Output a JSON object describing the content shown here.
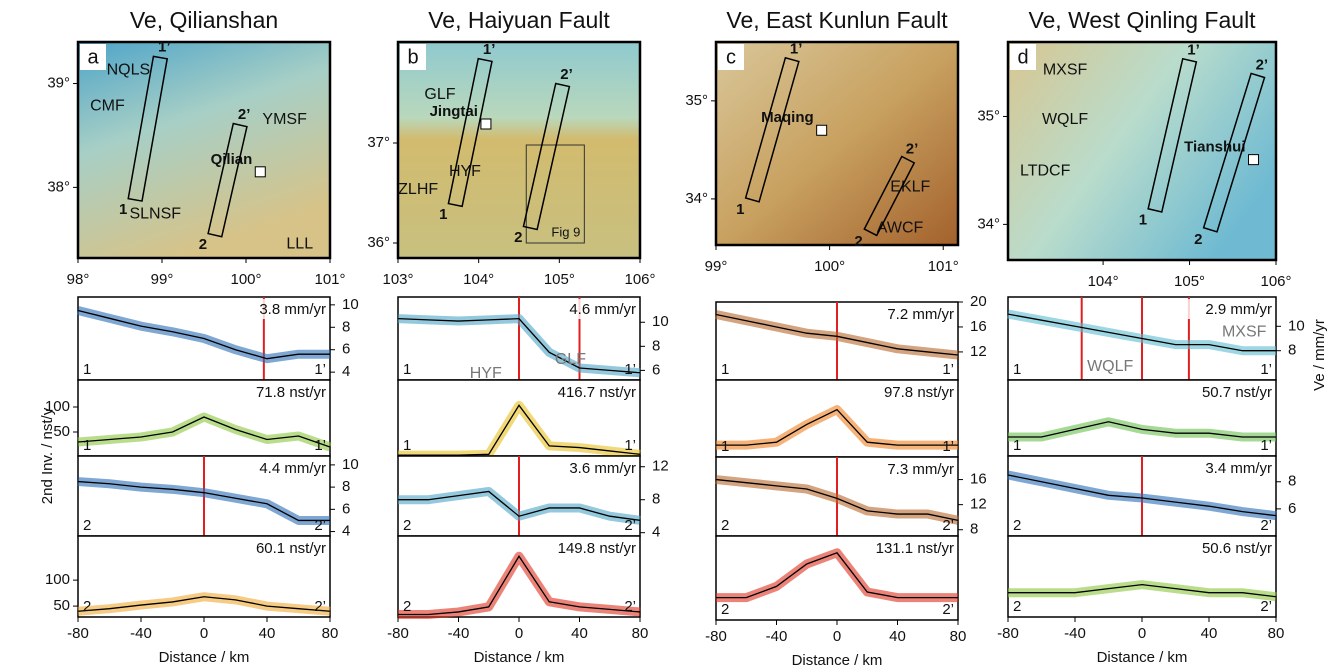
{
  "chart_data": [
    {
      "type": "map",
      "title": "Ve, Qilianshan",
      "panel": "a",
      "xlim": [
        98,
        101
      ],
      "ylim": [
        37.32,
        39.4
      ],
      "xticks": [
        {
          "value": 98,
          "label": "98°"
        },
        {
          "value": 99,
          "label": "99°"
        },
        {
          "value": 100,
          "label": "100°"
        },
        {
          "value": 101,
          "label": "101°"
        }
      ],
      "yticks": [
        {
          "value": 38,
          "label": "38°"
        },
        {
          "value": 39,
          "label": "39°"
        }
      ],
      "labels": [
        {
          "text": "NQLS",
          "lon": 98.6,
          "lat": 39.13
        },
        {
          "text": "CMF",
          "lon": 98.35,
          "lat": 38.78
        },
        {
          "text": "YMSF",
          "lon": 100.46,
          "lat": 38.65
        },
        {
          "text": "SLNSF",
          "lon": 98.92,
          "lat": 37.74
        },
        {
          "text": "LLL",
          "lon": 100.64,
          "lat": 37.45
        }
      ],
      "towns": [
        {
          "name": "Qilian",
          "lon": 100.17,
          "lat": 38.15
        }
      ],
      "profiles": [
        {
          "start": [
            98.68,
            37.88
          ],
          "end": [
            98.98,
            39.25
          ],
          "start_label": "1",
          "end_label": "1’"
        },
        {
          "start": [
            99.63,
            37.54
          ],
          "end": [
            99.93,
            38.6
          ],
          "start_label": "2",
          "end_label": "2’"
        }
      ]
    },
    {
      "type": "map",
      "title": "Ve, Haiyuan Fault",
      "panel": "b",
      "xlim": [
        103,
        106
      ],
      "ylim": [
        35.85,
        38.01
      ],
      "xticks": [
        {
          "value": 103,
          "label": "103°"
        },
        {
          "value": 104,
          "label": "104°"
        },
        {
          "value": 105,
          "label": "105°"
        },
        {
          "value": 106,
          "label": "106°"
        }
      ],
      "yticks": [
        {
          "value": 36,
          "label": "36°"
        },
        {
          "value": 37,
          "label": "37°"
        }
      ],
      "labels": [
        {
          "text": "GLF",
          "lon": 103.52,
          "lat": 37.48
        },
        {
          "text": "HYF",
          "lon": 103.83,
          "lat": 36.71
        },
        {
          "text": "ZLHF",
          "lon": 103.25,
          "lat": 36.53
        }
      ],
      "towns": [
        {
          "name": "Jingtai",
          "lon": 104.09,
          "lat": 37.19
        }
      ],
      "inset": {
        "label": "Fig 9",
        "lon": [
          104.59,
          105.31
        ],
        "lat": [
          36.0,
          36.98
        ]
      },
      "profiles": [
        {
          "start": [
            103.71,
            36.38
          ],
          "end": [
            104.08,
            37.83
          ],
          "start_label": "1",
          "end_label": "1’"
        },
        {
          "start": [
            104.64,
            36.15
          ],
          "end": [
            105.04,
            37.58
          ],
          "start_label": "2",
          "end_label": "2’"
        }
      ]
    },
    {
      "type": "map",
      "title": "Ve, East Kunlun Fault",
      "panel": "c",
      "xlim": [
        99,
        101.13
      ],
      "ylim": [
        33.53,
        35.6
      ],
      "xticks": [
        {
          "value": 99,
          "label": "99°"
        },
        {
          "value": 100,
          "label": "100°"
        },
        {
          "value": 101,
          "label": "101°"
        }
      ],
      "yticks": [
        {
          "value": 34,
          "label": "34°"
        },
        {
          "value": 35,
          "label": "35°"
        }
      ],
      "labels": [
        {
          "text": "EKLF",
          "lon": 100.71,
          "lat": 34.12
        },
        {
          "text": "AWCF",
          "lon": 100.62,
          "lat": 33.7
        }
      ],
      "towns": [
        {
          "name": "Maqing",
          "lon": 99.93,
          "lat": 34.7
        }
      ],
      "profiles": [
        {
          "start": [
            99.32,
            33.99
          ],
          "end": [
            99.67,
            35.42
          ],
          "start_label": "1",
          "end_label": "1’"
        },
        {
          "start": [
            100.36,
            33.66
          ],
          "end": [
            100.69,
            34.4
          ],
          "start_label": "2",
          "end_label": "2’"
        }
      ]
    },
    {
      "type": "map",
      "title": "Ve, West Qinling Fault",
      "panel": "d",
      "xlim": [
        102.9,
        106
      ],
      "ylim": [
        33.67,
        35.69
      ],
      "xticks": [
        {
          "value": 104,
          "label": "104°"
        },
        {
          "value": 105,
          "label": "105°"
        },
        {
          "value": 106,
          "label": "106°"
        }
      ],
      "yticks": [
        {
          "value": 34,
          "label": "34°"
        },
        {
          "value": 35,
          "label": "35°"
        }
      ],
      "labels": [
        {
          "text": "MXSF",
          "lon": 103.56,
          "lat": 35.43
        },
        {
          "text": "WQLF",
          "lon": 103.56,
          "lat": 34.97
        },
        {
          "text": "LTDCF",
          "lon": 103.33,
          "lat": 34.49
        }
      ],
      "towns": [
        {
          "name": "Tianshui",
          "lon": 105.74,
          "lat": 34.6
        }
      ],
      "profiles": [
        {
          "start": [
            104.6,
            34.13
          ],
          "end": [
            105.0,
            35.52
          ],
          "start_label": "1",
          "end_label": "1’"
        },
        {
          "start": [
            105.24,
            33.95
          ],
          "end": [
            105.79,
            35.38
          ],
          "start_label": "2",
          "end_label": "2’"
        }
      ]
    },
    {
      "type": "line",
      "xlim": [
        -80,
        80
      ],
      "ylim": [
        3.3,
        10.7
      ],
      "yticks": [
        4,
        6,
        8,
        10
      ],
      "ytick_side": "right",
      "x": [
        -80,
        -60,
        -40,
        -20,
        0,
        20,
        40,
        60,
        80
      ],
      "series": [
        {
          "color": "#2a6db5",
          "values": [
            9.5,
            8.8,
            8.1,
            7.6,
            7,
            6,
            5.2,
            5.6,
            5.6
          ]
        }
      ],
      "markers": [
        38
      ],
      "rate": "3.8 mm/yr",
      "start_label": "1",
      "end_label": "1’"
    },
    {
      "type": "line",
      "xlim": [
        -80,
        80
      ],
      "ylim": [
        2,
        154
      ],
      "yticks": [
        50,
        100
      ],
      "ytick_side": "left",
      "x": [
        -80,
        -60,
        -40,
        -20,
        0,
        20,
        40,
        60,
        80
      ],
      "series": [
        {
          "color": "#8cc63f",
          "values": [
            30,
            35,
            40,
            50,
            80,
            55,
            35,
            42,
            20
          ]
        }
      ],
      "rate": "71.8 nst/yr",
      "start_label": "1",
      "end_label": "1’"
    },
    {
      "type": "line",
      "xlim": [
        -80,
        80
      ],
      "ylim": [
        3.6,
        10.8
      ],
      "yticks": [
        4,
        6,
        8,
        10
      ],
      "ytick_side": "right",
      "x": [
        -80,
        -60,
        -40,
        -20,
        0,
        20,
        40,
        60,
        80
      ],
      "series": [
        {
          "color": "#2a6db5",
          "values": [
            8.5,
            8.3,
            8,
            7.8,
            7.5,
            7,
            6.5,
            5,
            5
          ]
        }
      ],
      "markers": [
        0
      ],
      "rate": "4.4 mm/yr",
      "start_label": "2",
      "end_label": "2’",
      "ylabel": "2nd Inv. / nst/y"
    },
    {
      "type": "line",
      "xlim": [
        -80,
        80
      ],
      "ylim": [
        29,
        185
      ],
      "yticks": [
        50,
        100
      ],
      "ytick_side": "left",
      "x": [
        -80,
        -60,
        -40,
        -20,
        0,
        20,
        40,
        60,
        80
      ],
      "series": [
        {
          "color": "#f0a830",
          "values": [
            40,
            45,
            52,
            58,
            68,
            62,
            50,
            45,
            40
          ]
        }
      ],
      "rate": "60.1 nst/yr",
      "start_label": "2",
      "end_label": "2’",
      "xticks": [
        -80,
        -40,
        0,
        40,
        80
      ],
      "xlabel": "Distance / km"
    },
    {
      "type": "line",
      "xlim": [
        -80,
        80
      ],
      "ylim": [
        5.2,
        12.1
      ],
      "yticks": [
        6,
        8,
        10
      ],
      "ytick_side": "right",
      "x": [
        -80,
        -60,
        -40,
        -20,
        0,
        20,
        40,
        60,
        80
      ],
      "series": [
        {
          "color": "#4ba3c7",
          "values": [
            10.3,
            10.2,
            10.1,
            10.2,
            10.3,
            7.5,
            6.2,
            6,
            5.8
          ]
        }
      ],
      "markers": [
        0,
        40
      ],
      "rate": "4.6 mm/yr",
      "start_label": "1",
      "end_label": "1’",
      "annotations": [
        {
          "text": "HYF",
          "x": -22,
          "y": 5.7
        },
        {
          "text": "GLF",
          "x": 34,
          "y": 6.9
        }
      ]
    },
    {
      "type": "line",
      "xlim": [
        -80,
        80
      ],
      "ylim": [
        0,
        450
      ],
      "x": [
        -80,
        -60,
        -40,
        -20,
        0,
        20,
        40,
        60,
        80
      ],
      "series": [
        {
          "color": "#e8c020",
          "values": [
            5,
            5,
            5,
            10,
            300,
            60,
            50,
            30,
            10
          ]
        }
      ],
      "rate": "416.7 nst/yr",
      "start_label": "1",
      "end_label": "1’"
    },
    {
      "type": "line",
      "xlim": [
        -80,
        80
      ],
      "ylim": [
        3.6,
        13.3
      ],
      "yticks": [
        4,
        8,
        12
      ],
      "ytick_side": "right",
      "x": [
        -80,
        -60,
        -40,
        -20,
        0,
        20,
        40,
        60,
        80
      ],
      "series": [
        {
          "color": "#4ba3c7",
          "values": [
            8,
            8,
            8.5,
            9,
            6,
            7,
            7,
            6,
            5.5
          ]
        }
      ],
      "markers": [
        0
      ],
      "rate": "3.6 mm/yr",
      "start_label": "2",
      "end_label": "2’"
    },
    {
      "type": "line",
      "xlim": [
        -80,
        80
      ],
      "ylim": [
        0,
        160
      ],
      "x": [
        -80,
        -60,
        -40,
        -20,
        0,
        20,
        40,
        60,
        80
      ],
      "series": [
        {
          "color": "#e03020",
          "values": [
            5,
            5,
            10,
            20,
            120,
            30,
            20,
            15,
            10
          ]
        }
      ],
      "rate": "149.8 nst/yr",
      "start_label": "2",
      "end_label": "2’",
      "xticks": [
        -80,
        -40,
        0,
        40,
        80
      ],
      "xlabel": "Distance / km"
    },
    {
      "type": "line",
      "xlim": [
        -80,
        80
      ],
      "ylim": [
        7.5,
        20
      ],
      "yticks": [
        12,
        16,
        20
      ],
      "ytick_side": "right",
      "x": [
        -80,
        -60,
        -40,
        -20,
        0,
        20,
        40,
        60,
        80
      ],
      "series": [
        {
          "color": "#b8652a",
          "values": [
            18,
            17,
            16,
            15,
            14.5,
            13.5,
            12.5,
            12,
            11.5
          ]
        }
      ],
      "markers": [
        0
      ],
      "rate": "7.2 mm/yr",
      "start_label": "1",
      "end_label": "1’"
    },
    {
      "type": "line",
      "xlim": [
        -80,
        80
      ],
      "ylim": [
        0,
        130
      ],
      "x": [
        -80,
        -60,
        -40,
        -20,
        0,
        20,
        40,
        60,
        80
      ],
      "series": [
        {
          "color": "#f08020",
          "values": [
            20,
            20,
            25,
            55,
            80,
            25,
            20,
            20,
            20
          ]
        }
      ],
      "rate": "97.8 nst/yr",
      "start_label": "1",
      "end_label": "1’"
    },
    {
      "type": "line",
      "xlim": [
        -80,
        80
      ],
      "ylim": [
        7,
        19.6
      ],
      "yticks": [
        8,
        12,
        16
      ],
      "ytick_side": "right",
      "x": [
        -80,
        -60,
        -40,
        -20,
        0,
        20,
        40,
        60,
        80
      ],
      "series": [
        {
          "color": "#b8652a",
          "values": [
            16,
            15.5,
            15,
            14.5,
            13,
            11,
            10.5,
            10.5,
            9.5
          ]
        }
      ],
      "markers": [
        0
      ],
      "rate": "7.3 mm/yr",
      "start_label": "2",
      "end_label": "2’"
    },
    {
      "type": "line",
      "xlim": [
        -80,
        80
      ],
      "ylim": [
        0,
        150
      ],
      "x": [
        -80,
        -60,
        -40,
        -20,
        0,
        20,
        40,
        60,
        80
      ],
      "series": [
        {
          "color": "#e03020",
          "values": [
            40,
            40,
            60,
            100,
            120,
            50,
            40,
            40,
            40
          ]
        }
      ],
      "rate": "131.1 nst/yr",
      "start_label": "2",
      "end_label": "2’",
      "xticks": [
        -80,
        -40,
        0,
        40,
        80
      ],
      "xlabel": "Distance / km"
    },
    {
      "type": "line",
      "xlim": [
        -80,
        80
      ],
      "ylim": [
        5.6,
        12.4
      ],
      "yticks": [
        8,
        10
      ],
      "ytick_side": "right",
      "x": [
        -80,
        -60,
        -40,
        -20,
        0,
        20,
        40,
        60,
        80
      ],
      "series": [
        {
          "color": "#5bbcd0",
          "values": [
            11,
            10.5,
            10,
            9.5,
            9,
            8.5,
            8.5,
            8,
            8
          ]
        }
      ],
      "markers": [
        -36,
        0,
        28
      ],
      "rate": "2.9 mm/yr",
      "start_label": "1",
      "end_label": "1’",
      "annotations": [
        {
          "text": "MXSF",
          "x": 61,
          "y": 9.5
        },
        {
          "text": "WQLF",
          "x": -19,
          "y": 6.7
        }
      ],
      "ylabel": "Ve / mm/yr"
    },
    {
      "type": "line",
      "xlim": [
        -80,
        80
      ],
      "ylim": [
        0,
        100
      ],
      "x": [
        -80,
        -60,
        -40,
        -20,
        0,
        20,
        40,
        60,
        80
      ],
      "series": [
        {
          "color": "#6cc050",
          "values": [
            25,
            25,
            35,
            45,
            35,
            30,
            30,
            25,
            25
          ]
        }
      ],
      "rate": "50.7 nst/yr",
      "start_label": "1",
      "end_label": "1’"
    },
    {
      "type": "line",
      "xlim": [
        -80,
        80
      ],
      "ylim": [
        4,
        9.9
      ],
      "yticks": [
        6,
        8
      ],
      "ytick_side": "right",
      "x": [
        -80,
        -60,
        -40,
        -20,
        0,
        20,
        40,
        60,
        80
      ],
      "series": [
        {
          "color": "#2a6db5",
          "values": [
            8.5,
            8,
            7.5,
            7,
            6.8,
            6.5,
            6.2,
            5.8,
            5.5
          ]
        }
      ],
      "markers": [
        0
      ],
      "rate": "3.4 mm/yr",
      "start_label": "2",
      "end_label": "2’"
    },
    {
      "type": "line",
      "xlim": [
        -80,
        80
      ],
      "ylim": [
        0,
        100
      ],
      "x": [
        -80,
        -60,
        -40,
        -20,
        0,
        20,
        40,
        60,
        80
      ],
      "series": [
        {
          "color": "#8cc63f",
          "values": [
            30,
            30,
            30,
            35,
            40,
            35,
            30,
            30,
            25
          ]
        }
      ],
      "rate": "50.6 nst/yr",
      "start_label": "2",
      "end_label": "2’",
      "xticks": [
        -80,
        -40,
        0,
        40,
        80
      ],
      "xlabel": "Distance / km"
    }
  ]
}
